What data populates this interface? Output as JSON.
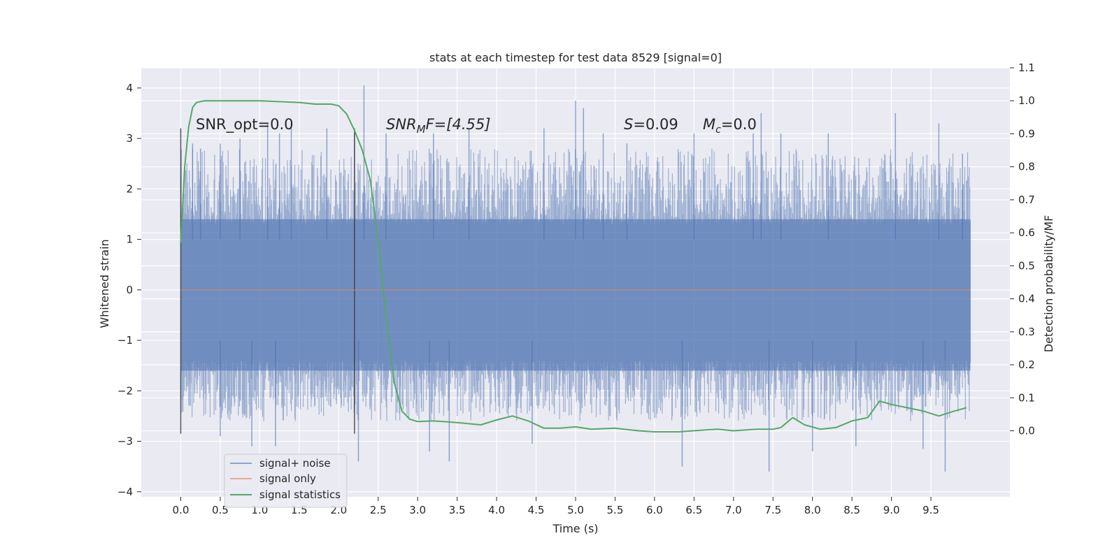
{
  "chart_data": {
    "type": "line",
    "title": "stats at each timestep for test data 8529 [signal=0]",
    "xlabel": "Time (s)",
    "ylabel": "Whitened strain",
    "y2label": "Detection probability/MF",
    "xlim": [
      -0.5,
      10.5
    ],
    "ylim": [
      -4.1,
      4.4
    ],
    "y2lim": [
      -0.2,
      1.1
    ],
    "x_ticks": [
      0.0,
      0.5,
      1.0,
      1.5,
      2.0,
      2.5,
      3.0,
      3.5,
      4.0,
      4.5,
      5.0,
      5.5,
      6.0,
      6.5,
      7.0,
      7.5,
      8.0,
      8.5,
      9.0,
      9.5
    ],
    "x_tick_labels": [
      "0.0",
      "0.5",
      "1.0",
      "1.5",
      "2.0",
      "2.5",
      "3.0",
      "3.5",
      "4.0",
      "4.5",
      "5.0",
      "5.5",
      "6.0",
      "6.5",
      "7.0",
      "7.5",
      "8.0",
      "8.5",
      "9.0",
      "9.5"
    ],
    "y_ticks": [
      4,
      3,
      2,
      1,
      0,
      -1,
      -2,
      -3,
      -4
    ],
    "y_tick_labels": [
      "4",
      "3",
      "2",
      "1",
      "0",
      "−1",
      "−2",
      "−3",
      "−4"
    ],
    "y2_ticks": [
      1.1,
      1.0,
      0.9,
      0.8,
      0.7,
      0.6,
      0.5,
      0.4,
      0.3,
      0.2,
      0.1,
      0.0
    ],
    "y2_tick_labels": [
      "1.1",
      "1.0",
      "0.9",
      "0.8",
      "0.7",
      "0.6",
      "0.5",
      "0.4",
      "0.3",
      "0.2",
      "0.1",
      "0.0"
    ],
    "grid": true,
    "legend_position": "lower-left",
    "background": "#eaeaf2",
    "series": [
      {
        "name": "signal+ noise",
        "color": "#4c72b0",
        "style": "dense noise band",
        "x_range": [
          0.0,
          10.0
        ],
        "band": [
          -1.6,
          1.4
        ],
        "approx_extent": [
          -3.6,
          4.1
        ],
        "peaks": [
          {
            "x": 0.15,
            "y": 2.9
          },
          {
            "x": 0.25,
            "y": 2.8
          },
          {
            "x": 0.5,
            "y": 2.9
          },
          {
            "x": 0.75,
            "y": 3.0
          },
          {
            "x": 1.1,
            "y": 3.3
          },
          {
            "x": 1.25,
            "y": 3.1
          },
          {
            "x": 1.4,
            "y": 3.3
          },
          {
            "x": 1.85,
            "y": 3.2
          },
          {
            "x": 2.2,
            "y": 3.1
          },
          {
            "x": 2.32,
            "y": 4.05
          },
          {
            "x": 2.6,
            "y": 3.1
          },
          {
            "x": 3.2,
            "y": 3.1
          },
          {
            "x": 3.65,
            "y": 3.2
          },
          {
            "x": 4.6,
            "y": 3.2
          },
          {
            "x": 5.0,
            "y": 3.75
          },
          {
            "x": 5.1,
            "y": 3.6
          },
          {
            "x": 5.35,
            "y": 3.1
          },
          {
            "x": 5.65,
            "y": 2.9
          },
          {
            "x": 6.5,
            "y": 3.1
          },
          {
            "x": 7.25,
            "y": 3.1
          },
          {
            "x": 7.35,
            "y": 3.5
          },
          {
            "x": 7.6,
            "y": 3.1
          },
          {
            "x": 8.2,
            "y": 3.1
          },
          {
            "x": 9.05,
            "y": 3.5
          },
          {
            "x": 9.6,
            "y": 3.3
          },
          {
            "x": 9.9,
            "y": 2.7
          }
        ],
        "troughs": [
          {
            "x": 0.5,
            "y": -2.9
          },
          {
            "x": 0.9,
            "y": -3.1
          },
          {
            "x": 1.2,
            "y": -3.1
          },
          {
            "x": 2.25,
            "y": -3.4
          },
          {
            "x": 3.15,
            "y": -3.2
          },
          {
            "x": 3.4,
            "y": -3.4
          },
          {
            "x": 4.45,
            "y": -3.05
          },
          {
            "x": 6.35,
            "y": -3.5
          },
          {
            "x": 7.45,
            "y": -3.6
          },
          {
            "x": 8.0,
            "y": -3.2
          },
          {
            "x": 8.55,
            "y": -3.1
          },
          {
            "x": 9.4,
            "y": -3.15
          },
          {
            "x": 9.68,
            "y": -3.6
          }
        ]
      },
      {
        "name": "signal only",
        "color": "#dd8452",
        "x": [
          0.0,
          10.0
        ],
        "y": [
          0.0,
          0.0
        ]
      },
      {
        "name": "signal statistics",
        "color": "#55a868",
        "axis": "right",
        "x": [
          0.0,
          0.05,
          0.1,
          0.15,
          0.2,
          0.3,
          0.5,
          1.0,
          1.5,
          1.7,
          1.9,
          2.0,
          2.1,
          2.2,
          2.3,
          2.4,
          2.5,
          2.6,
          2.7,
          2.8,
          2.9,
          3.0,
          3.2,
          3.5,
          3.8,
          4.0,
          4.2,
          4.4,
          4.6,
          4.8,
          5.0,
          5.2,
          5.5,
          5.8,
          6.0,
          6.3,
          6.6,
          6.8,
          7.0,
          7.3,
          7.5,
          7.6,
          7.75,
          7.9,
          8.1,
          8.3,
          8.5,
          8.7,
          8.85,
          9.0,
          9.2,
          9.4,
          9.6,
          9.8,
          9.95
        ],
        "y": [
          0.57,
          0.8,
          0.92,
          0.98,
          0.995,
          1.0,
          1.0,
          1.0,
          0.995,
          0.99,
          0.99,
          0.985,
          0.96,
          0.91,
          0.85,
          0.76,
          0.58,
          0.35,
          0.15,
          0.06,
          0.035,
          0.028,
          0.03,
          0.025,
          0.018,
          0.033,
          0.045,
          0.03,
          0.008,
          0.008,
          0.012,
          0.005,
          0.008,
          0.0,
          -0.003,
          -0.003,
          0.002,
          0.005,
          0.0,
          0.005,
          0.005,
          0.01,
          0.04,
          0.018,
          0.005,
          0.01,
          0.03,
          0.04,
          0.09,
          0.08,
          0.07,
          0.06,
          0.045,
          0.06,
          0.07
        ]
      }
    ],
    "vertical_lines": [
      {
        "x": 0.0,
        "y": [
          -2.85,
          3.2
        ]
      },
      {
        "x": 2.2,
        "y": [
          -2.85,
          3.2
        ]
      }
    ],
    "annotations": {
      "snr_opt": "SNR_opt=0.0",
      "snr_mf_italic": "SNR",
      "snr_mf_sub": "M",
      "snr_mf_rest": "F=[4.55]",
      "s_italic": "S",
      "s_rest": "=0.09",
      "mc_italic": "M",
      "mc_sub": "c",
      "mc_rest": "=0.0"
    }
  }
}
